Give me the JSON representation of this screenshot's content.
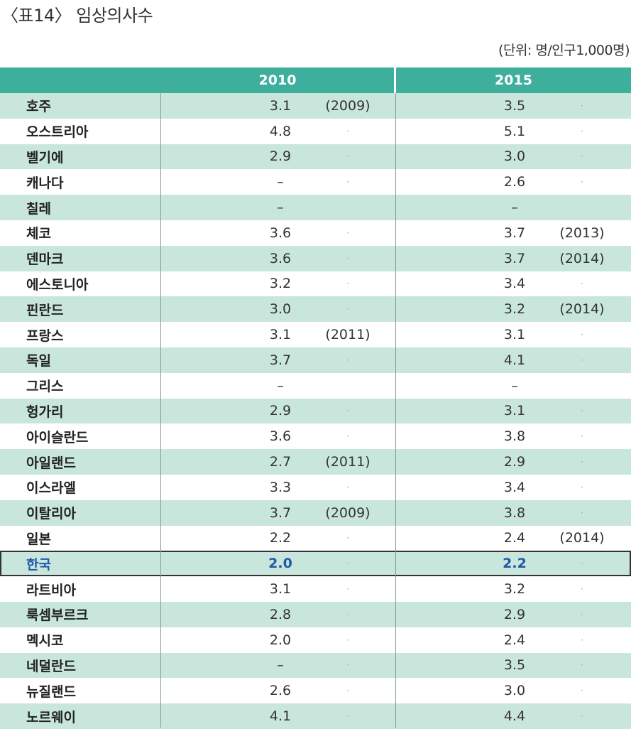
{
  "title": "〈표14〉 임상의사수",
  "unit": "(단위: 명/인구1,000명)",
  "columns": [
    "2010",
    "2015"
  ],
  "rows": [
    {
      "country": "호주",
      "v2010": "3.1",
      "n2010": "(2009)",
      "v2015": "3.5",
      "n2015": "·"
    },
    {
      "country": "오스트리아",
      "v2010": "4.8",
      "n2010": "·",
      "v2015": "5.1",
      "n2015": "·"
    },
    {
      "country": "벨기에",
      "v2010": "2.9",
      "n2010": "·",
      "v2015": "3.0",
      "n2015": "·"
    },
    {
      "country": "캐나다",
      "v2010": "–",
      "n2010": "·",
      "v2015": "2.6",
      "n2015": "·"
    },
    {
      "country": "칠레",
      "v2010": "–",
      "n2010": "",
      "v2015": "–",
      "n2015": ""
    },
    {
      "country": "체코",
      "v2010": "3.6",
      "n2010": "·",
      "v2015": "3.7",
      "n2015": "(2013)"
    },
    {
      "country": "덴마크",
      "v2010": "3.6",
      "n2010": "·",
      "v2015": "3.7",
      "n2015": "(2014)"
    },
    {
      "country": "에스토니아",
      "v2010": "3.2",
      "n2010": "·",
      "v2015": "3.4",
      "n2015": "·"
    },
    {
      "country": "핀란드",
      "v2010": "3.0",
      "n2010": "·",
      "v2015": "3.2",
      "n2015": "(2014)"
    },
    {
      "country": "프랑스",
      "v2010": "3.1",
      "n2010": "(2011)",
      "v2015": "3.1",
      "n2015": "·"
    },
    {
      "country": "독일",
      "v2010": "3.7",
      "n2010": "·",
      "v2015": "4.1",
      "n2015": "·"
    },
    {
      "country": "그리스",
      "v2010": "–",
      "n2010": "",
      "v2015": "–",
      "n2015": ""
    },
    {
      "country": "헝가리",
      "v2010": "2.9",
      "n2010": "·",
      "v2015": "3.1",
      "n2015": "·"
    },
    {
      "country": "아이슬란드",
      "v2010": "3.6",
      "n2010": "·",
      "v2015": "3.8",
      "n2015": "·"
    },
    {
      "country": "아일랜드",
      "v2010": "2.7",
      "n2010": "(2011)",
      "v2015": "2.9",
      "n2015": "·"
    },
    {
      "country": "이스라엘",
      "v2010": "3.3",
      "n2010": "·",
      "v2015": "3.4",
      "n2015": "·"
    },
    {
      "country": "이탈리아",
      "v2010": "3.7",
      "n2010": "(2009)",
      "v2015": "3.8",
      "n2015": "·"
    },
    {
      "country": "일본",
      "v2010": "2.2",
      "n2010": "·",
      "v2015": "2.4",
      "n2015": "(2014)"
    },
    {
      "country": "한국",
      "v2010": "2.0",
      "n2010": "·",
      "v2015": "2.2",
      "n2015": "·",
      "highlight": true
    },
    {
      "country": "라트비아",
      "v2010": "3.1",
      "n2010": "·",
      "v2015": "3.2",
      "n2015": "·"
    },
    {
      "country": "룩셈부르크",
      "v2010": "2.8",
      "n2010": "·",
      "v2015": "2.9",
      "n2015": "·"
    },
    {
      "country": "멕시코",
      "v2010": "2.0",
      "n2010": "·",
      "v2015": "2.4",
      "n2015": "·"
    },
    {
      "country": "네덜란드",
      "v2010": "–",
      "n2010": "·",
      "v2015": "3.5",
      "n2015": "·"
    },
    {
      "country": "뉴질랜드",
      "v2010": "2.6",
      "n2010": "·",
      "v2015": "3.0",
      "n2015": "·"
    },
    {
      "country": "노르웨이",
      "v2010": "4.1",
      "n2010": "·",
      "v2015": "4.4",
      "n2015": "·"
    }
  ],
  "colors": {
    "header": "#3daf9c",
    "row_band": "#c9e6dd",
    "highlight_text": "#1f5aa6"
  }
}
